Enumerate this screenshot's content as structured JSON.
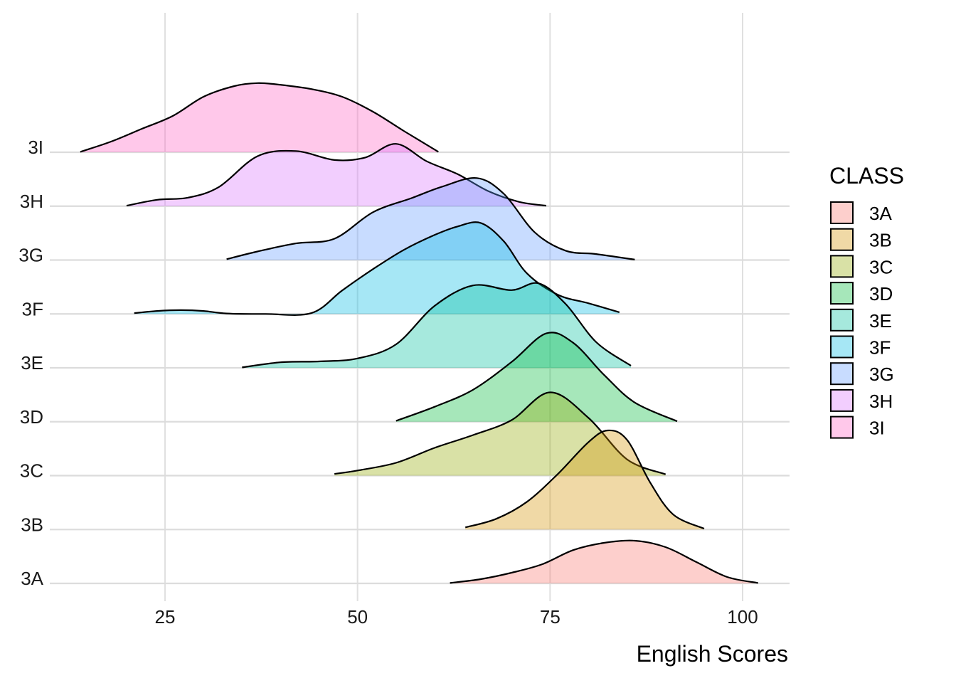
{
  "chart_data": {
    "type": "ridgeline",
    "xlabel": "English Scores",
    "ylabel": "",
    "xlim": [
      10,
      106
    ],
    "x_ticks": [
      25,
      50,
      75,
      100
    ],
    "grid": true,
    "legend": {
      "title": "CLASS",
      "position": "right"
    },
    "categories": [
      "3A",
      "3B",
      "3C",
      "3D",
      "3E",
      "3F",
      "3G",
      "3H",
      "3I"
    ],
    "series": [
      {
        "name": "3A",
        "color": "#F8766D",
        "x": [
          62,
          66,
          70,
          74,
          78,
          82,
          86,
          90,
          94,
          98,
          102
        ],
        "density": [
          0.01,
          0.1,
          0.25,
          0.45,
          0.78,
          0.95,
          1.0,
          0.85,
          0.5,
          0.15,
          0.01
        ]
      },
      {
        "name": "3B",
        "color": "#D39200",
        "x": [
          64,
          68,
          72,
          76,
          80,
          82.5,
          85,
          88,
          91,
          95
        ],
        "density": [
          0.05,
          0.25,
          0.65,
          1.3,
          2.05,
          2.32,
          2.1,
          1.1,
          0.35,
          0.02
        ]
      },
      {
        "name": "3C",
        "color": "#93AA00",
        "x": [
          47,
          50,
          55,
          60,
          65,
          70,
          75,
          80,
          85,
          90
        ],
        "density": [
          0.04,
          0.12,
          0.3,
          0.65,
          0.95,
          1.3,
          1.95,
          1.35,
          0.38,
          0.03
        ]
      },
      {
        "name": "3D",
        "color": "#00BA38",
        "x": [
          55,
          60,
          65,
          70,
          74.5,
          78,
          82,
          86,
          91.5
        ],
        "density": [
          0.02,
          0.35,
          0.75,
          1.4,
          2.07,
          1.85,
          1.1,
          0.45,
          0.01
        ]
      },
      {
        "name": "3E",
        "color": "#00C19F",
        "x": [
          35,
          40,
          45,
          50,
          55,
          60,
          65,
          70,
          73.5,
          77,
          81,
          85.5
        ],
        "density": [
          0.01,
          0.13,
          0.15,
          0.22,
          0.55,
          1.45,
          1.93,
          1.82,
          1.98,
          1.5,
          0.6,
          0.05
        ]
      },
      {
        "name": "3F",
        "color": "#00B9E3",
        "x": [
          21,
          24,
          27,
          30,
          33,
          38,
          44,
          48,
          52,
          56,
          60,
          63,
          66,
          69,
          72,
          76,
          80,
          84
        ],
        "density": [
          0.02,
          0.07,
          0.09,
          0.07,
          0.01,
          0.0,
          0.02,
          0.55,
          1.05,
          1.5,
          1.85,
          2.05,
          2.13,
          1.7,
          0.95,
          0.45,
          0.25,
          0.04
        ]
      },
      {
        "name": "3G",
        "color": "#619CFF",
        "x": [
          33,
          37,
          42,
          47,
          52,
          57,
          61,
          65.5,
          69,
          73,
          77,
          81,
          86
        ],
        "density": [
          0.02,
          0.2,
          0.39,
          0.5,
          1.12,
          1.45,
          1.72,
          1.92,
          1.55,
          0.65,
          0.22,
          0.14,
          0.01
        ]
      },
      {
        "name": "3H",
        "color": "#DB72FB",
        "x": [
          20,
          24,
          28,
          32,
          37,
          42,
          47,
          51,
          55,
          59,
          63,
          67,
          71,
          74.5
        ],
        "density": [
          0.01,
          0.15,
          0.2,
          0.45,
          1.17,
          1.29,
          1.08,
          1.14,
          1.46,
          1.05,
          0.75,
          0.35,
          0.1,
          0.01
        ]
      },
      {
        "name": "3I",
        "color": "#FF61C3",
        "x": [
          14,
          18,
          22,
          26,
          30,
          34,
          37,
          40,
          44,
          48,
          52,
          56,
          60.5
        ],
        "density": [
          0.01,
          0.25,
          0.55,
          0.85,
          1.3,
          1.55,
          1.62,
          1.58,
          1.48,
          1.3,
          0.95,
          0.5,
          0.01
        ]
      }
    ]
  }
}
